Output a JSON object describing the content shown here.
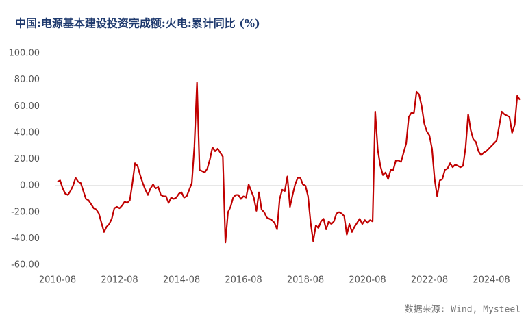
{
  "chart_data": {
    "type": "line",
    "title": "中国:电源基本建设投资完成额:火电:累计同比 (%)",
    "source": "数据来源: Wind, Mysteel",
    "categories": [
      "2010-08",
      null,
      null,
      null,
      null,
      null,
      null,
      null,
      null,
      null,
      null,
      null,
      null,
      null,
      null,
      null,
      null,
      null,
      null,
      null,
      null,
      null,
      null,
      null,
      "2012-08",
      null,
      null,
      null,
      null,
      null,
      null,
      null,
      null,
      null,
      null,
      null,
      null,
      null,
      null,
      null,
      null,
      null,
      null,
      null,
      null,
      null,
      null,
      null,
      "2014-08",
      null,
      null,
      null,
      null,
      null,
      null,
      null,
      null,
      null,
      null,
      null,
      null,
      null,
      null,
      null,
      null,
      null,
      null,
      null,
      null,
      null,
      null,
      null,
      "2016-08",
      null,
      null,
      null,
      null,
      null,
      null,
      null,
      null,
      null,
      null,
      null,
      null,
      null,
      null,
      null,
      null,
      null,
      null,
      null,
      null,
      null,
      null,
      null,
      "2018-08",
      null,
      null,
      null,
      null,
      null,
      null,
      null,
      null,
      null,
      null,
      null,
      null,
      null,
      null,
      null,
      null,
      null,
      null,
      null,
      null,
      null,
      null,
      null,
      "2020-08",
      null,
      null,
      null,
      null,
      null,
      null,
      null,
      null,
      null,
      null,
      null,
      null,
      null,
      null,
      null,
      null,
      null,
      null,
      null,
      null,
      null,
      null,
      null,
      "2022-08",
      null,
      null,
      null,
      null,
      null,
      null,
      null,
      null,
      null,
      null,
      null,
      null,
      null,
      null,
      null,
      null,
      null,
      null,
      null,
      null,
      null,
      null,
      null,
      "2024-08",
      null,
      null,
      null,
      null,
      null,
      null,
      null,
      null,
      null,
      null,
      null
    ],
    "series": [
      {
        "color": "#c00000",
        "values": [
          3,
          4,
          -2,
          -6,
          -7,
          -4,
          0,
          6,
          3,
          2,
          -4,
          -10,
          -11,
          -14,
          -17,
          -18,
          -21,
          -28,
          -35,
          -31,
          -29,
          -25,
          -17,
          -16,
          -17,
          -15,
          -12,
          -13,
          -11,
          2,
          17,
          15,
          8,
          2,
          -3,
          -7,
          -2,
          1,
          -2,
          -1,
          -7,
          -8,
          -8,
          -13,
          -9,
          -10,
          -9,
          -6,
          -5,
          -9,
          -8,
          -3,
          2,
          30,
          78,
          12,
          11,
          10,
          13,
          20,
          29,
          26,
          28,
          25,
          22,
          -43,
          -20,
          -16,
          -9,
          -7,
          -7,
          -10,
          -8,
          -9,
          1,
          -4,
          -9,
          -19,
          -5,
          -18,
          -20,
          -24,
          -25,
          -26,
          -28,
          -33,
          -10,
          -3,
          -4,
          7,
          -16,
          -7,
          1,
          6,
          6,
          1,
          0,
          -8,
          -28,
          -42,
          -30,
          -32,
          -27,
          -25,
          -33,
          -27,
          -29,
          -27,
          -21,
          -20,
          -21,
          -23,
          -37,
          -29,
          -35,
          -31,
          -28,
          -25,
          -29,
          -26,
          -28,
          -26,
          -27,
          56,
          27,
          15,
          8,
          10,
          5,
          12,
          12,
          19,
          19,
          18,
          25,
          32,
          52,
          55,
          55,
          71,
          69,
          60,
          47,
          41,
          38,
          28,
          5,
          -8,
          4,
          5,
          12,
          13,
          17,
          14,
          16,
          15,
          14,
          15,
          29,
          54,
          42,
          35,
          33,
          26,
          23,
          25,
          26,
          28,
          30,
          32,
          34,
          45,
          56,
          54,
          53,
          52,
          40,
          46,
          68,
          65
        ]
      }
    ],
    "ylim": [
      -60,
      100
    ],
    "yticks": [
      {
        "value": -60,
        "label": "-60.00"
      },
      {
        "value": -40,
        "label": "-40.00"
      },
      {
        "value": -20,
        "label": "-20.00"
      },
      {
        "value": 0,
        "label": "0.00"
      },
      {
        "value": 20,
        "label": "20.00"
      },
      {
        "value": 40,
        "label": "40.00"
      },
      {
        "value": 60,
        "label": "60.00"
      },
      {
        "value": 80,
        "label": "80.00"
      },
      {
        "value": 100,
        "label": "100.00"
      }
    ]
  }
}
